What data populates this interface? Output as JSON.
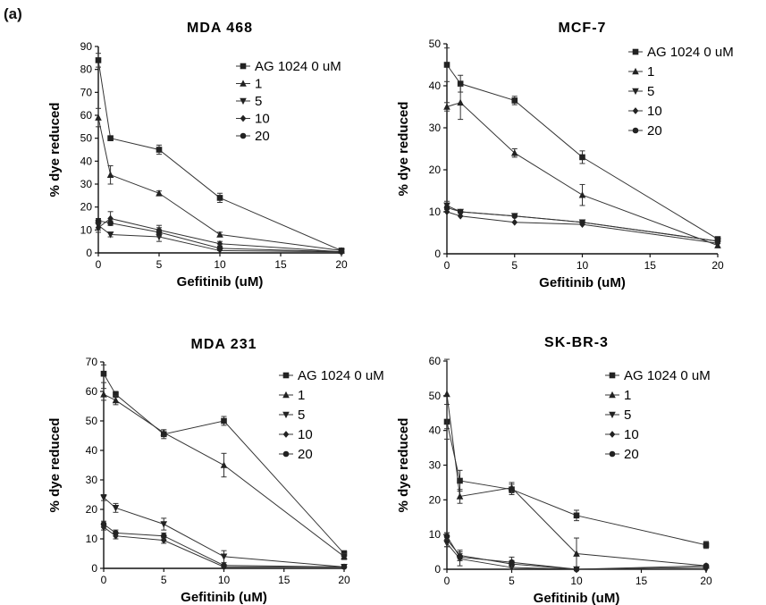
{
  "figure": {
    "panel_label": "(a)"
  },
  "chart_data": [
    {
      "type": "line",
      "title": "MDA 468",
      "xlabel": "Gefitinib (uM)",
      "ylabel": "% dye reduced",
      "x": [
        0,
        1,
        5,
        10,
        20
      ],
      "xticks": [
        0,
        5,
        10,
        15,
        20
      ],
      "xlim": [
        0,
        20
      ],
      "yticks": [
        0,
        10,
        20,
        30,
        40,
        50,
        60,
        70,
        80,
        90
      ],
      "ylim": [
        0,
        90
      ],
      "grid": false,
      "legend_position": "top-right",
      "series": [
        {
          "name": "AG 1024 0 uM",
          "marker": "square",
          "values": [
            84,
            50,
            45,
            24,
            1
          ],
          "errors": [
            3,
            1,
            2,
            2,
            1
          ]
        },
        {
          "name": "1",
          "marker": "triangle-up",
          "values": [
            59,
            34,
            26,
            8,
            1
          ],
          "errors": [
            4,
            4,
            1,
            1,
            0.5
          ]
        },
        {
          "name": "5",
          "marker": "triangle-down",
          "values": [
            12,
            8,
            7,
            1,
            0.5
          ],
          "errors": [
            2,
            1,
            2,
            0.5,
            0.5
          ]
        },
        {
          "name": "10",
          "marker": "diamond",
          "values": [
            11,
            15,
            10,
            4,
            0.5
          ],
          "errors": [
            2,
            3,
            2,
            1,
            0.5
          ]
        },
        {
          "name": "20",
          "marker": "circle",
          "values": [
            14,
            13,
            9,
            2,
            0.5
          ],
          "errors": [
            1,
            1,
            2,
            1,
            0.5
          ]
        }
      ]
    },
    {
      "type": "line",
      "title": "MCF-7",
      "xlabel": "Gefitinib (uM)",
      "ylabel": "% dye reduced",
      "x": [
        0,
        1,
        5,
        10,
        20
      ],
      "xticks": [
        0,
        5,
        10,
        15,
        20
      ],
      "xlim": [
        0,
        20
      ],
      "yticks": [
        0,
        10,
        20,
        30,
        40,
        50
      ],
      "ylim": [
        0,
        50
      ],
      "grid": false,
      "legend_position": "top-right",
      "series": [
        {
          "name": "AG 1024 0 uM",
          "marker": "square",
          "values": [
            45,
            40.5,
            36.5,
            23,
            3.5
          ],
          "errors": [
            4,
            2,
            1,
            1.5,
            0.5
          ]
        },
        {
          "name": "1",
          "marker": "triangle-up",
          "values": [
            35,
            36,
            24,
            14,
            2
          ],
          "errors": [
            1,
            4,
            1,
            2.5,
            0.5
          ]
        },
        {
          "name": "5",
          "marker": "triangle-down",
          "values": [
            11.5,
            10,
            9,
            7.5,
            3
          ],
          "errors": [
            1,
            0.5,
            0.5,
            0.5,
            0.5
          ]
        },
        {
          "name": "10",
          "marker": "diamond",
          "values": [
            10,
            9,
            7.5,
            7,
            2.5
          ],
          "errors": [
            0.5,
            0.5,
            0.5,
            0.5,
            0.5
          ]
        },
        {
          "name": "20",
          "marker": "circle",
          "values": [
            11,
            10,
            9,
            7.5,
            3
          ],
          "errors": [
            0.5,
            0.5,
            0.5,
            0.5,
            0.5
          ]
        }
      ]
    },
    {
      "type": "line",
      "title": "MDA 231",
      "xlabel": "Gefitinib (uM)",
      "ylabel": "% dye reduced",
      "x": [
        0,
        1,
        5,
        10,
        20
      ],
      "xticks": [
        0,
        5,
        10,
        15,
        20
      ],
      "xlim": [
        0,
        20
      ],
      "yticks": [
        0,
        10,
        20,
        30,
        40,
        50,
        60,
        70
      ],
      "ylim": [
        0,
        70
      ],
      "grid": false,
      "legend_position": "top-right",
      "series": [
        {
          "name": "AG 1024 0 uM",
          "marker": "square",
          "values": [
            66,
            59,
            45.5,
            50,
            5
          ],
          "errors": [
            3,
            1,
            1.5,
            1.5,
            1
          ]
        },
        {
          "name": "1",
          "marker": "triangle-up",
          "values": [
            59,
            57,
            46,
            35,
            4
          ],
          "errors": [
            2,
            1.5,
            1,
            4,
            1
          ]
        },
        {
          "name": "5",
          "marker": "triangle-down",
          "values": [
            24,
            20.5,
            15,
            4,
            0.5
          ],
          "errors": [
            1,
            1.5,
            2,
            2,
            0.5
          ]
        },
        {
          "name": "10",
          "marker": "diamond",
          "values": [
            14,
            11,
            9.5,
            0.5,
            0.5
          ],
          "errors": [
            1,
            1,
            1,
            0.5,
            0.5
          ]
        },
        {
          "name": "20",
          "marker": "circle",
          "values": [
            15,
            12,
            11,
            1,
            0.5
          ],
          "errors": [
            1,
            1,
            1,
            0.5,
            0.5
          ]
        }
      ]
    },
    {
      "type": "line",
      "title": "SK-BR-3",
      "xlabel": "Gefitinib (uM)",
      "ylabel": "% dye reduced",
      "x": [
        0,
        1,
        5,
        10,
        20
      ],
      "xticks": [
        0,
        5,
        10,
        15,
        20
      ],
      "xlim": [
        0,
        20
      ],
      "yticks": [
        0,
        10,
        20,
        30,
        40,
        50,
        60
      ],
      "ylim": [
        0,
        60
      ],
      "grid": false,
      "legend_position": "top-right",
      "series": [
        {
          "name": "AG 1024 0 uM",
          "marker": "square",
          "values": [
            42.5,
            25.5,
            23,
            15.5,
            7
          ],
          "errors": [
            5,
            3,
            1.5,
            1.5,
            1
          ]
        },
        {
          "name": "1",
          "marker": "triangle-up",
          "values": [
            50.5,
            21,
            23.5,
            4.5,
            1
          ],
          "errors": [
            10,
            2,
            1.5,
            4.5,
            0.5
          ]
        },
        {
          "name": "5",
          "marker": "triangle-down",
          "values": [
            7.5,
            3,
            0.5,
            0,
            0
          ],
          "errors": [
            1,
            2,
            1,
            0.5,
            0.5
          ]
        },
        {
          "name": "10",
          "marker": "diamond",
          "values": [
            8.5,
            4,
            1.5,
            0,
            0.5
          ],
          "errors": [
            2,
            1.5,
            1,
            0.5,
            0.5
          ]
        },
        {
          "name": "20",
          "marker": "circle",
          "values": [
            9.5,
            3.5,
            2,
            0,
            1
          ],
          "errors": [
            1,
            1,
            1.5,
            0.5,
            0.5
          ]
        }
      ]
    }
  ]
}
